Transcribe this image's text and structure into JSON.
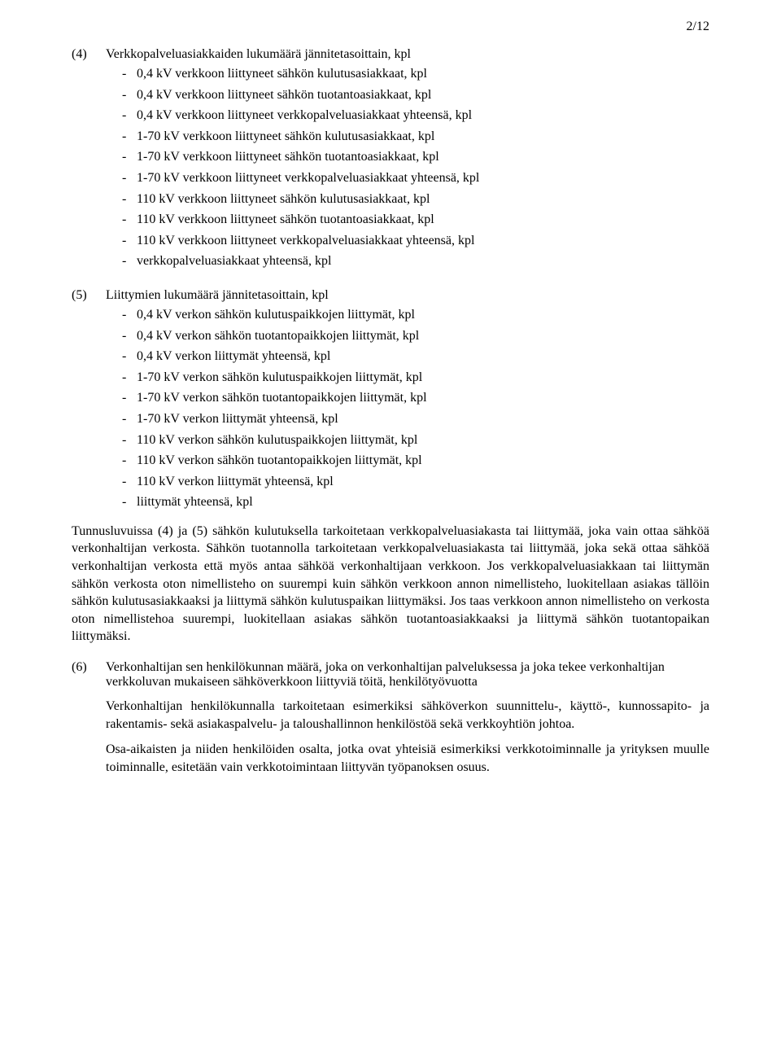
{
  "pageNumber": "2/12",
  "section4": {
    "num": "(4)",
    "heading": "Verkkopalveluasiakkaiden lukumäärä jännitetasoittain, kpl",
    "items": [
      "0,4 kV verkkoon liittyneet sähkön kulutusasiakkaat, kpl",
      "0,4 kV verkkoon liittyneet sähkön tuotantoasiakkaat, kpl",
      "0,4 kV verkkoon liittyneet verkkopalveluasiakkaat yhteensä, kpl",
      "1-70 kV verkkoon liittyneet sähkön kulutusasiakkaat, kpl",
      "1-70 kV verkkoon liittyneet sähkön tuotantoasiakkaat, kpl",
      "1-70 kV verkkoon liittyneet verkkopalveluasiakkaat yhteensä, kpl",
      "110 kV verkkoon liittyneet sähkön kulutusasiakkaat, kpl",
      "110 kV verkkoon liittyneet sähkön tuotantoasiakkaat, kpl",
      "110 kV verkkoon liittyneet verkkopalveluasiakkaat yhteensä, kpl",
      "verkkopalveluasiakkaat yhteensä, kpl"
    ]
  },
  "section5": {
    "num": "(5)",
    "heading": "Liittymien lukumäärä jännitetasoittain, kpl",
    "items": [
      "0,4 kV verkon sähkön kulutuspaikkojen liittymät, kpl",
      "0,4 kV verkon sähkön tuotantopaikkojen liittymät, kpl",
      "0,4 kV verkon liittymät yhteensä, kpl",
      "1-70 kV verkon sähkön kulutuspaikkojen liittymät, kpl",
      "1-70 kV verkon sähkön tuotantopaikkojen liittymät, kpl",
      "1-70 kV verkon liittymät yhteensä, kpl",
      "110 kV verkon sähkön kulutuspaikkojen liittymät, kpl",
      "110 kV verkon sähkön tuotantopaikkojen liittymät, kpl",
      "110 kV verkon liittymät yhteensä, kpl",
      "liittymät yhteensä, kpl"
    ]
  },
  "explanatoryPara": "Tunnusluvuissa (4) ja (5) sähkön kulutuksella tarkoitetaan verkkopalveluasiakasta tai liittymää, joka vain ottaa sähköä verkonhaltijan verkosta. Sähkön tuotannolla tarkoitetaan verkkopalveluasiakasta tai liittymää, joka sekä ottaa sähköä verkonhaltijan verkosta että myös antaa sähköä verkonhaltijaan verkkoon. Jos verkkopalveluasiakkaan tai liittymän sähkön verkosta oton nimellisteho on suurempi kuin sähkön verkkoon annon nimellisteho, luokitellaan asiakas tällöin sähkön kulutusasiakkaaksi ja liittymä sähkön kulutuspaikan liittymäksi. Jos taas verkkoon annon nimellisteho on verkosta oton nimellistehoa suurempi, luokitellaan asiakas sähkön tuotantoasiakkaaksi ja liittymä sähkön tuotantopaikan liittymäksi.",
  "section6": {
    "num": "(6)",
    "heading": "Verkonhaltijan sen henkilökunnan määrä, joka on verkonhaltijan palveluksessa ja joka tekee verkonhaltijan verkkoluvan mukaiseen sähköverkkoon liittyviä töitä, henkilötyövuotta",
    "para1": "Verkonhaltijan henkilökunnalla tarkoitetaan esimerkiksi sähköverkon suunnittelu-, käyttö-, kunnossapito- ja rakentamis- sekä asiakaspalvelu- ja taloushallinnon henkilöstöä sekä verkkoyhtiön johtoa.",
    "para2": "Osa-aikaisten ja niiden henkilöiden osalta, jotka ovat yhteisiä esimerkiksi verkkotoiminnalle ja yrityksen muulle toiminnalle, esitetään vain verkkotoimintaan liittyvän työpanoksen osuus."
  }
}
